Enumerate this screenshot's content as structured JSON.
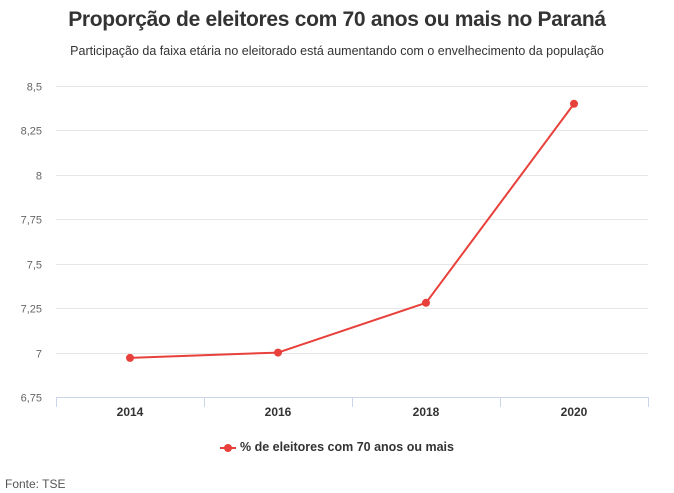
{
  "header": {
    "title": "Proporção de eleitores com 70 anos ou mais no Paraná",
    "subtitle": "Participação da faixa etária no eleitorado está aumentando com o envelhecimento da população"
  },
  "legend": {
    "label": "% de eleitores com 70 anos ou mais"
  },
  "footer": {
    "source": "Fonte: TSE"
  },
  "colors": {
    "series": "#e8403a",
    "grid": "#e6e6e6",
    "axis": "#ccd6eb"
  },
  "chart_data": {
    "type": "line",
    "title": "Proporção de eleitores com 70 anos ou mais no Paraná",
    "subtitle": "Participação da faixa etária no eleitorado está aumentando com o envelhecimento da população",
    "xlabel": "",
    "ylabel": "",
    "categories": [
      "2014",
      "2016",
      "2018",
      "2020"
    ],
    "series": [
      {
        "name": "% de eleitores com 70 anos ou mais",
        "values": [
          6.97,
          7.0,
          7.28,
          8.4
        ]
      }
    ],
    "ylim": [
      6.75,
      8.5
    ],
    "yticks": [
      "6,75",
      "7",
      "7,25",
      "7,5",
      "7,75",
      "8",
      "8,25",
      "8,5"
    ],
    "ytick_values": [
      6.75,
      7,
      7.25,
      7.5,
      7.75,
      8,
      8.25,
      8.5
    ],
    "grid": true,
    "legend_position": "bottom",
    "source": "Fonte: TSE"
  }
}
